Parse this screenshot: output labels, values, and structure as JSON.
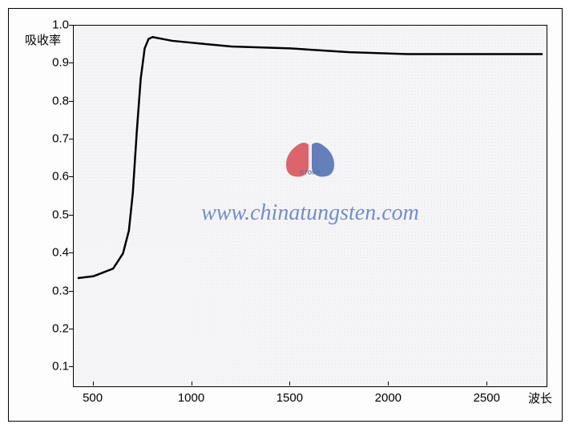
{
  "chart": {
    "type": "line",
    "background_color": "#f5f5f7",
    "border_color": "#000000",
    "dot_pattern_color": "#d0d0d8",
    "ylabel": "吸收率",
    "xlabel": "波长",
    "label_fontsize": 15,
    "label_color": "#000000",
    "xlim": [
      400,
      2800
    ],
    "ylim": [
      0.05,
      1.0
    ],
    "xticks": [
      500,
      1000,
      1500,
      2000,
      2500
    ],
    "yticks": [
      0.1,
      0.2,
      0.3,
      0.4,
      0.5,
      0.6,
      0.7,
      0.8,
      0.9,
      1.0
    ],
    "ytick_labels": [
      "0.1",
      "0.2",
      "0.3",
      "0.4",
      "0.5",
      "0.6",
      "0.7",
      "0.8",
      "0.9",
      "1.0"
    ],
    "xtick_labels": [
      "500",
      "1000",
      "1500",
      "2000",
      "2500"
    ],
    "tick_fontsize": 15,
    "series": {
      "color": "#000000",
      "line_width": 2.5,
      "x": [
        420,
        500,
        600,
        650,
        680,
        700,
        720,
        740,
        760,
        780,
        800,
        850,
        900,
        1000,
        1200,
        1500,
        1800,
        2100,
        2400,
        2700,
        2780
      ],
      "y": [
        0.335,
        0.34,
        0.36,
        0.4,
        0.46,
        0.56,
        0.72,
        0.86,
        0.94,
        0.965,
        0.97,
        0.965,
        0.96,
        0.955,
        0.945,
        0.94,
        0.93,
        0.925,
        0.925,
        0.925,
        0.925
      ]
    }
  },
  "watermark": {
    "text": "www.chinatungsten.com",
    "text_color": "#5a7bc4",
    "text_fontsize": 28,
    "logo": {
      "ctoms_text": "CTOMS",
      "red_color": "#d63940",
      "blue_color": "#3a5ba8"
    }
  }
}
